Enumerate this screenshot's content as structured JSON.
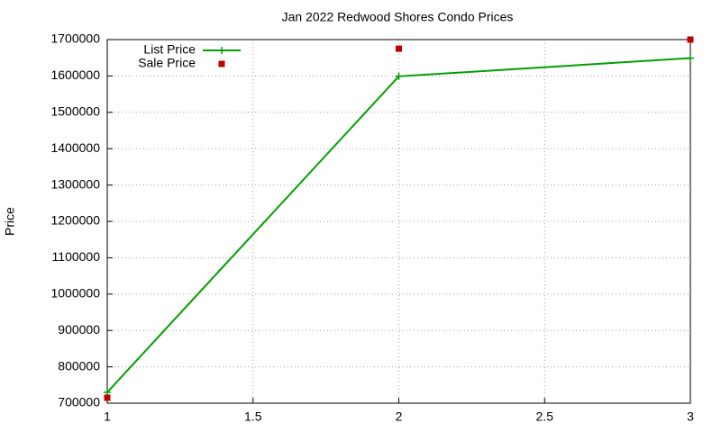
{
  "chart_data": {
    "type": "line",
    "title": "Jan 2022 Redwood Shores Condo Prices",
    "y_label": "Price",
    "series": [
      {
        "name": "List Price",
        "color": "#00a000",
        "line": true,
        "marker": "plus",
        "x": [
          1,
          2,
          3
        ],
        "values": [
          730000,
          1599000,
          1649000
        ]
      },
      {
        "name": "Sale Price",
        "color": "#c00000",
        "line": false,
        "marker": "square",
        "x": [
          1,
          2,
          3
        ],
        "values": [
          715000,
          1675000,
          1700000
        ]
      }
    ],
    "xlim": [
      1,
      3
    ],
    "xticks": [
      1,
      1.5,
      2,
      2.5,
      3
    ],
    "ylim": [
      700000,
      1700000
    ],
    "yticks": [
      700000,
      800000,
      900000,
      1000000,
      1100000,
      1200000,
      1300000,
      1400000,
      1500000,
      1600000,
      1700000
    ],
    "grid": true,
    "legend": "top-left"
  }
}
